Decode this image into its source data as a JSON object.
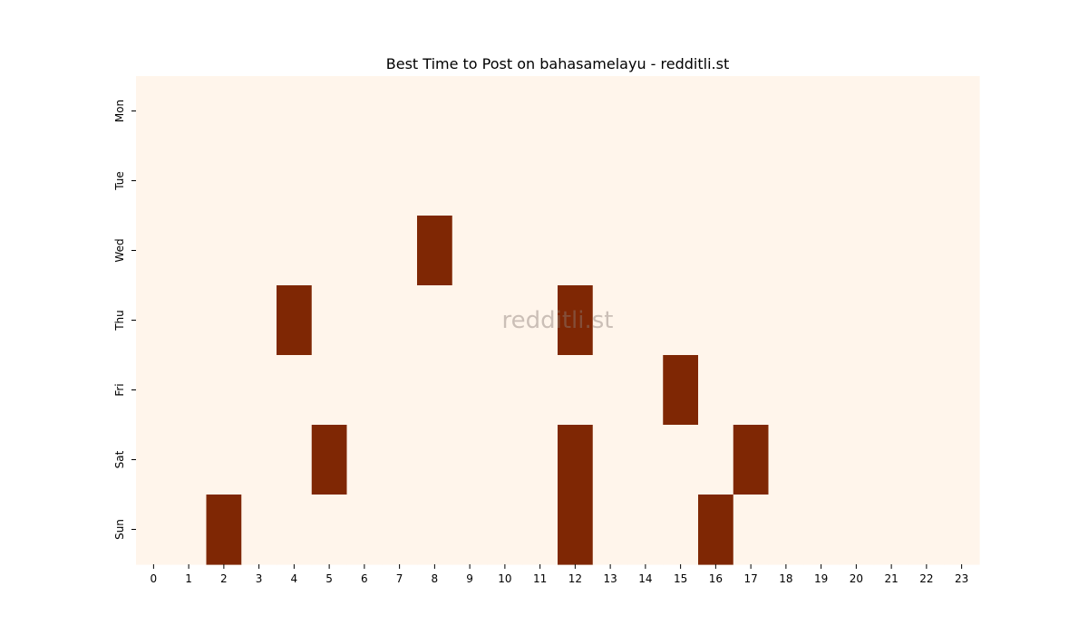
{
  "chart_data": {
    "type": "heatmap",
    "title": "Best Time to Post on bahasamelayu - redditli.st",
    "xlabel": "",
    "ylabel": "",
    "x_categories": [
      "0",
      "1",
      "2",
      "3",
      "4",
      "5",
      "6",
      "7",
      "8",
      "9",
      "10",
      "11",
      "12",
      "13",
      "14",
      "15",
      "16",
      "17",
      "18",
      "19",
      "20",
      "21",
      "22",
      "23"
    ],
    "y_categories": [
      "Mon",
      "Tue",
      "Wed",
      "Thu",
      "Fri",
      "Sat",
      "Sun"
    ],
    "values": [
      [
        0,
        0,
        0,
        0,
        0,
        0,
        0,
        0,
        0,
        0,
        0,
        0,
        0,
        0,
        0,
        0,
        0,
        0,
        0,
        0,
        0,
        0,
        0,
        0
      ],
      [
        0,
        0,
        0,
        0,
        0,
        0,
        0,
        0,
        0,
        0,
        0,
        0,
        0,
        0,
        0,
        0,
        0,
        0,
        0,
        0,
        0,
        0,
        0,
        0
      ],
      [
        0,
        0,
        0,
        0,
        0,
        0,
        0,
        0,
        1,
        0,
        0,
        0,
        0,
        0,
        0,
        0,
        0,
        0,
        0,
        0,
        0,
        0,
        0,
        0
      ],
      [
        0,
        0,
        0,
        0,
        1,
        0,
        0,
        0,
        0,
        0,
        0,
        0,
        1,
        0,
        0,
        0,
        0,
        0,
        0,
        0,
        0,
        0,
        0,
        0
      ],
      [
        0,
        0,
        0,
        0,
        0,
        0,
        0,
        0,
        0,
        0,
        0,
        0,
        0,
        0,
        0,
        1,
        0,
        0,
        0,
        0,
        0,
        0,
        0,
        0
      ],
      [
        0,
        0,
        0,
        0,
        0,
        1,
        0,
        0,
        0,
        0,
        0,
        0,
        1,
        0,
        0,
        0,
        0,
        1,
        0,
        0,
        0,
        0,
        0,
        0
      ],
      [
        0,
        0,
        1,
        0,
        0,
        0,
        0,
        0,
        0,
        0,
        0,
        0,
        1,
        0,
        0,
        0,
        1,
        0,
        0,
        0,
        0,
        0,
        0,
        0
      ]
    ],
    "color_low": "#fff5eb",
    "color_high": "#7f2704",
    "watermark": "redditli.st",
    "grid": false,
    "legend": "none"
  }
}
